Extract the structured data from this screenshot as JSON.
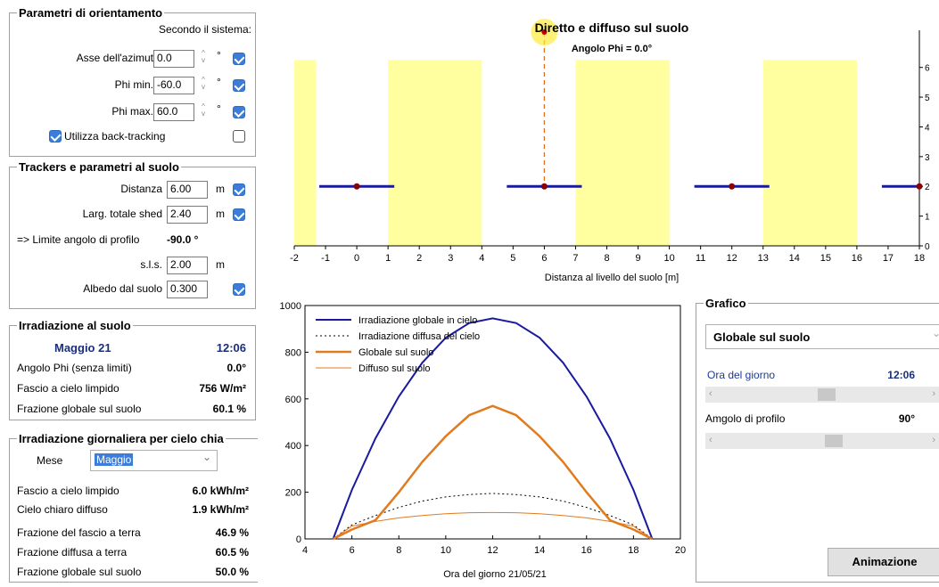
{
  "orient": {
    "title": "Parametri di orientamento",
    "subtitle": "Secondo il sistema:",
    "azimuth_label": "Asse dell'azimut",
    "azimuth_value": "0.0",
    "phimin_label": "Phi min.",
    "phimin_value": "-60.0",
    "phimax_label": "Phi max.",
    "phimax_value": "60.0",
    "deg": "°",
    "backtracking_label": "Utilizza back-tracking"
  },
  "trackers": {
    "title": "Trackers e parametri al suolo",
    "dist_label": "Distanza",
    "dist_value": "6.00",
    "dist_unit": "m",
    "shed_label": "Larg. totale shed",
    "shed_value": "2.40",
    "shed_unit": "m",
    "limit_label": "=> Limite angolo di profilo",
    "limit_value": "-90.0 °",
    "sls_label": "s.l.s.",
    "sls_value": "2.00",
    "sls_unit": "m",
    "albedo_label": "Albedo dal suolo",
    "albedo_value": "0.300"
  },
  "irr": {
    "title": "Irradiazione al suolo",
    "date": "Maggio 21",
    "time": "12:06",
    "rows": [
      {
        "label": "Angolo Phi (senza limiti)",
        "value": "0.0°"
      },
      {
        "label": "Fascio a cielo limpido",
        "value": "756 W/m²"
      },
      {
        "label": "Frazione globale sul suolo",
        "value": "60.1 %"
      }
    ]
  },
  "daily": {
    "title": "Irradiazione giornaliera per cielo chia",
    "month_label": "Mese",
    "month_value": "Maggio",
    "rows": [
      {
        "label": "Fascio a cielo limpido",
        "value": "6.0 kWh/m²"
      },
      {
        "label": "Cielo chiaro diffuso",
        "value": "1.9 kWh/m²"
      },
      {
        "label": "Frazione del fascio a terra",
        "value": "46.9 %"
      },
      {
        "label": "Frazione diffusa a terra",
        "value": "60.5 %"
      },
      {
        "label": "Frazione globale sul suolo",
        "value": "50.0 %"
      }
    ]
  },
  "grafico": {
    "title": "Grafico",
    "selected": "Globale sul suolo",
    "ora_label": "Ora del giorno",
    "ora_value": "12:06",
    "profilo_label": "Amgolo di profilo",
    "profilo_value": "90°",
    "anim_label": "Animazione"
  },
  "chart_data": [
    {
      "type": "diagram",
      "title": "Diretto e diffuso sul suolo",
      "subtitle": "Angolo Phi = 0.0°",
      "xlabel": "Distanza al livello del suolo [m]",
      "xlim": [
        -2,
        18
      ],
      "ylim": [
        0,
        6.5
      ],
      "x_ticks": [
        -2,
        -1,
        0,
        1,
        2,
        3,
        4,
        5,
        6,
        7,
        8,
        9,
        10,
        11,
        12,
        13,
        14,
        15,
        16,
        17,
        18
      ],
      "y_ticks": [
        0,
        1,
        2,
        3,
        4,
        5,
        6
      ],
      "lit_zones": [
        [
          -2,
          -1.3
        ],
        [
          1.0,
          4.0
        ],
        [
          7.0,
          10.0
        ],
        [
          13.0,
          16.0
        ]
      ],
      "trackers": [
        {
          "center": 0,
          "width": 2.4,
          "height": 2
        },
        {
          "center": 6,
          "width": 2.4,
          "height": 2
        },
        {
          "center": 12,
          "width": 2.4,
          "height": 2
        },
        {
          "center": 18,
          "width": 2.4,
          "height": 2
        }
      ],
      "sun_ray_x": 6,
      "colors": {
        "lit": "#ffffa0",
        "tracker": "#1a1aa0",
        "pivot": "#8b0000",
        "ray": "#e07020",
        "sun": "#ffeb3b"
      }
    },
    {
      "type": "line",
      "xlabel": "Ora del giorno 21/05/21",
      "xlim": [
        4,
        20
      ],
      "ylim": [
        0,
        1000
      ],
      "x_ticks": [
        4,
        6,
        8,
        10,
        12,
        14,
        16,
        18,
        20
      ],
      "y_ticks": [
        0,
        200,
        400,
        600,
        800,
        1000
      ],
      "series": [
        {
          "name": "Irradiazione globale in cielo",
          "color": "#1a1aa0",
          "style": "solid",
          "width": 2,
          "x": [
            5.2,
            6,
            7,
            8,
            9,
            10,
            11,
            12,
            13,
            14,
            15,
            16,
            17,
            18,
            18.8
          ],
          "y": [
            0,
            210,
            430,
            610,
            755,
            862,
            925,
            945,
            925,
            862,
            755,
            610,
            430,
            210,
            0
          ]
        },
        {
          "name": "Irradiazione diffusa del cielo",
          "color": "#000000",
          "style": "dotted",
          "width": 1,
          "x": [
            5.2,
            6,
            7,
            8,
            9,
            10,
            11,
            12,
            13,
            14,
            15,
            16,
            17,
            18,
            18.8
          ],
          "y": [
            0,
            60,
            100,
            135,
            162,
            180,
            190,
            195,
            190,
            180,
            162,
            135,
            100,
            60,
            0
          ]
        },
        {
          "name": "Globale sul suolo",
          "color": "#e07b20",
          "style": "solid",
          "width": 2.5,
          "x": [
            5.2,
            6,
            7,
            8,
            9,
            10,
            11,
            12,
            13,
            14,
            15,
            16,
            17,
            18,
            18.8
          ],
          "y": [
            0,
            40,
            80,
            200,
            330,
            440,
            530,
            570,
            530,
            440,
            330,
            200,
            80,
            40,
            0
          ]
        },
        {
          "name": "Diffuso sul suolo",
          "color": "#e07b20",
          "style": "solid",
          "width": 1,
          "x": [
            5.2,
            6,
            7,
            8,
            9,
            10,
            11,
            12,
            13,
            14,
            15,
            16,
            17,
            18,
            18.8
          ],
          "y": [
            0,
            55,
            75,
            90,
            100,
            108,
            112,
            113,
            112,
            108,
            100,
            90,
            75,
            55,
            0
          ]
        }
      ]
    }
  ]
}
